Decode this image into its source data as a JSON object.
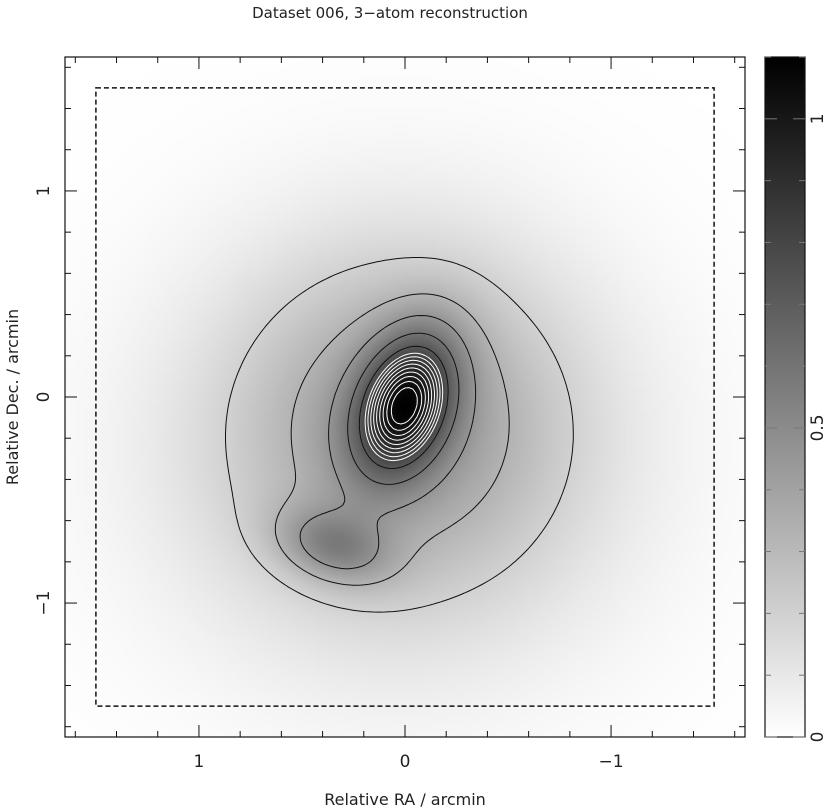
{
  "chart_data": {
    "type": "heatmap",
    "title": "Dataset 006, 3−atom reconstruction",
    "xlabel": "Relative RA / arcmin",
    "ylabel": "Relative Dec. / arcmin",
    "x_axis_reversed": true,
    "xlim": [
      1.65,
      -1.65
    ],
    "ylim": [
      -1.65,
      1.65
    ],
    "x_ticks": [
      1,
      0,
      -1
    ],
    "x_tick_labels": [
      "1",
      "0",
      "−1"
    ],
    "y_ticks": [
      1,
      0,
      -1
    ],
    "y_tick_labels": [
      "1",
      "0",
      "−1"
    ],
    "colorbar": {
      "range": [
        0,
        1.1
      ],
      "ticks": [
        0,
        0.5,
        1
      ],
      "tick_labels": [
        "0",
        "0.5",
        "1"
      ],
      "colormap": "white-to-black grayscale"
    },
    "components": [
      {
        "ra": 0.0,
        "dec": -0.03,
        "amplitude": 1.0
      },
      {
        "ra": 0.35,
        "dec": -0.73,
        "amplitude": 0.45
      },
      {
        "ra": 0.05,
        "dec": -0.3,
        "amplitude": 0.4
      }
    ],
    "region_box": {
      "ra": [
        1.5,
        -1.5
      ],
      "dec": [
        -1.5,
        1.5
      ],
      "style": "dashed"
    },
    "contours": "solid black outer levels, white inner levels",
    "colors": {
      "contour_dark": "#111111",
      "contour_light": "#ffffff"
    }
  }
}
